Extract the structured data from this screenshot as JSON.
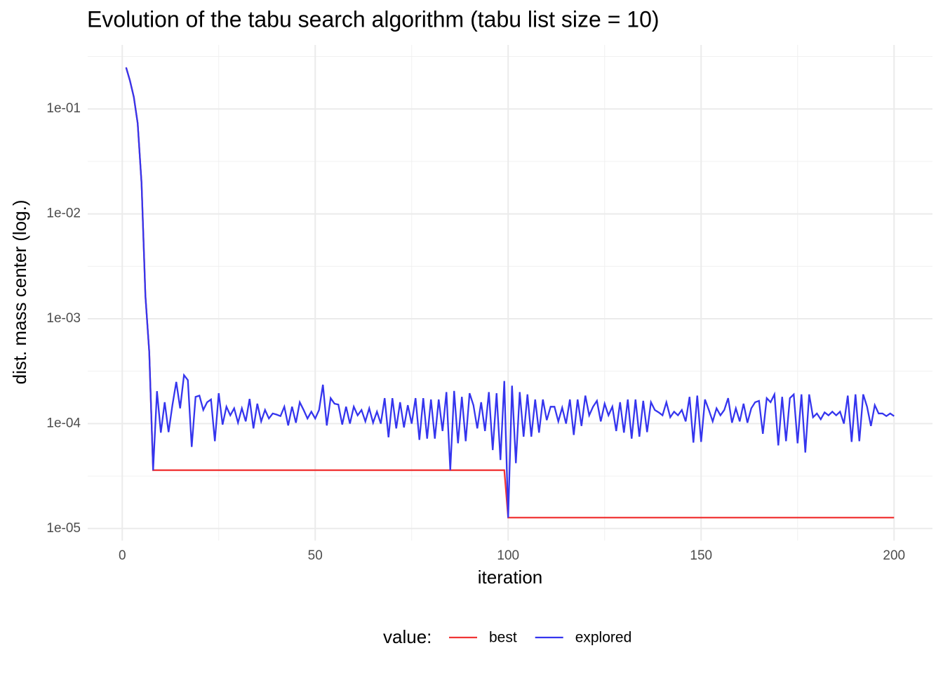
{
  "chart_data": {
    "type": "line",
    "title": "Evolution of the tabu search algorithm (tabu list size = 10)",
    "x_label": "iteration",
    "y_label": "dist. mass center (log.)",
    "legend_title": "value:",
    "legend_position": "bottom",
    "log_y": true,
    "grid": true,
    "xlim": [
      -8.95,
      209.95
    ],
    "xticks": [
      0,
      50,
      100,
      150,
      200
    ],
    "ylim": [
      7.67e-06,
      0.408
    ],
    "yticks": [
      {
        "value": 1e-05,
        "label": "1e-05"
      },
      {
        "value": 0.0001,
        "label": "1e-04"
      },
      {
        "value": 0.001,
        "label": "1e-03"
      },
      {
        "value": 0.01,
        "label": "1e-02"
      },
      {
        "value": 0.1,
        "label": "1e-01"
      }
    ],
    "x": [
      1,
      2,
      3,
      4,
      5,
      6,
      7,
      8,
      9,
      10,
      11,
      12,
      13,
      14,
      15,
      16,
      17,
      18,
      19,
      20,
      21,
      22,
      23,
      24,
      25,
      26,
      27,
      28,
      29,
      30,
      31,
      32,
      33,
      34,
      35,
      36,
      37,
      38,
      39,
      40,
      41,
      42,
      43,
      44,
      45,
      46,
      47,
      48,
      49,
      50,
      51,
      52,
      53,
      54,
      55,
      56,
      57,
      58,
      59,
      60,
      61,
      62,
      63,
      64,
      65,
      66,
      67,
      68,
      69,
      70,
      71,
      72,
      73,
      74,
      75,
      76,
      77,
      78,
      79,
      80,
      81,
      82,
      83,
      84,
      85,
      86,
      87,
      88,
      89,
      90,
      91,
      92,
      93,
      94,
      95,
      96,
      97,
      98,
      99,
      100,
      101,
      102,
      103,
      104,
      105,
      106,
      107,
      108,
      109,
      110,
      111,
      112,
      113,
      114,
      115,
      116,
      117,
      118,
      119,
      120,
      121,
      122,
      123,
      124,
      125,
      126,
      127,
      128,
      129,
      130,
      131,
      132,
      133,
      134,
      135,
      136,
      137,
      138,
      139,
      140,
      141,
      142,
      143,
      144,
      145,
      146,
      147,
      148,
      149,
      150,
      151,
      152,
      153,
      154,
      155,
      156,
      157,
      158,
      159,
      160,
      161,
      162,
      163,
      164,
      165,
      166,
      167,
      168,
      169,
      170,
      171,
      172,
      173,
      174,
      175,
      176,
      177,
      178,
      179,
      180,
      181,
      182,
      183,
      184,
      185,
      186,
      187,
      188,
      189,
      190,
      191,
      192,
      193,
      194,
      195,
      196,
      197,
      198,
      199,
      200
    ],
    "series": [
      {
        "name": "best",
        "color": "#f03535",
        "values": [
          0.249,
          0.186,
          0.13,
          0.073,
          0.0197,
          0.00166,
          0.00048,
          3.6e-05,
          3.6e-05,
          3.6e-05,
          3.6e-05,
          3.6e-05,
          3.6e-05,
          3.6e-05,
          3.6e-05,
          3.6e-05,
          3.6e-05,
          3.6e-05,
          3.6e-05,
          3.6e-05,
          3.6e-05,
          3.6e-05,
          3.6e-05,
          3.6e-05,
          3.6e-05,
          3.6e-05,
          3.6e-05,
          3.6e-05,
          3.6e-05,
          3.6e-05,
          3.6e-05,
          3.6e-05,
          3.6e-05,
          3.6e-05,
          3.6e-05,
          3.6e-05,
          3.6e-05,
          3.6e-05,
          3.6e-05,
          3.6e-05,
          3.6e-05,
          3.6e-05,
          3.6e-05,
          3.6e-05,
          3.6e-05,
          3.6e-05,
          3.6e-05,
          3.6e-05,
          3.6e-05,
          3.6e-05,
          3.6e-05,
          3.6e-05,
          3.6e-05,
          3.6e-05,
          3.6e-05,
          3.6e-05,
          3.6e-05,
          3.6e-05,
          3.6e-05,
          3.6e-05,
          3.6e-05,
          3.6e-05,
          3.6e-05,
          3.6e-05,
          3.6e-05,
          3.6e-05,
          3.6e-05,
          3.6e-05,
          3.6e-05,
          3.6e-05,
          3.6e-05,
          3.6e-05,
          3.6e-05,
          3.6e-05,
          3.6e-05,
          3.6e-05,
          3.6e-05,
          3.6e-05,
          3.6e-05,
          3.6e-05,
          3.6e-05,
          3.6e-05,
          3.6e-05,
          3.6e-05,
          3.6e-05,
          3.6e-05,
          3.6e-05,
          3.6e-05,
          3.6e-05,
          3.6e-05,
          3.6e-05,
          3.6e-05,
          3.6e-05,
          3.6e-05,
          3.6e-05,
          3.6e-05,
          3.6e-05,
          3.6e-05,
          3.6e-05,
          1.27e-05,
          1.27e-05,
          1.27e-05,
          1.27e-05,
          1.27e-05,
          1.27e-05,
          1.27e-05,
          1.27e-05,
          1.27e-05,
          1.27e-05,
          1.27e-05,
          1.27e-05,
          1.27e-05,
          1.27e-05,
          1.27e-05,
          1.27e-05,
          1.27e-05,
          1.27e-05,
          1.27e-05,
          1.27e-05,
          1.27e-05,
          1.27e-05,
          1.27e-05,
          1.27e-05,
          1.27e-05,
          1.27e-05,
          1.27e-05,
          1.27e-05,
          1.27e-05,
          1.27e-05,
          1.27e-05,
          1.27e-05,
          1.27e-05,
          1.27e-05,
          1.27e-05,
          1.27e-05,
          1.27e-05,
          1.27e-05,
          1.27e-05,
          1.27e-05,
          1.27e-05,
          1.27e-05,
          1.27e-05,
          1.27e-05,
          1.27e-05,
          1.27e-05,
          1.27e-05,
          1.27e-05,
          1.27e-05,
          1.27e-05,
          1.27e-05,
          1.27e-05,
          1.27e-05,
          1.27e-05,
          1.27e-05,
          1.27e-05,
          1.27e-05,
          1.27e-05,
          1.27e-05,
          1.27e-05,
          1.27e-05,
          1.27e-05,
          1.27e-05,
          1.27e-05,
          1.27e-05,
          1.27e-05,
          1.27e-05,
          1.27e-05,
          1.27e-05,
          1.27e-05,
          1.27e-05,
          1.27e-05,
          1.27e-05,
          1.27e-05,
          1.27e-05,
          1.27e-05,
          1.27e-05,
          1.27e-05,
          1.27e-05,
          1.27e-05,
          1.27e-05,
          1.27e-05,
          1.27e-05,
          1.27e-05,
          1.27e-05,
          1.27e-05,
          1.27e-05,
          1.27e-05,
          1.27e-05,
          1.27e-05,
          1.27e-05,
          1.27e-05,
          1.27e-05,
          1.27e-05,
          1.27e-05,
          1.27e-05,
          1.27e-05,
          1.27e-05,
          1.27e-05,
          1.27e-05,
          1.27e-05
        ]
      },
      {
        "name": "explored",
        "color": "#3535ee",
        "values": [
          0.249,
          0.186,
          0.13,
          0.073,
          0.0197,
          0.00166,
          0.00048,
          3.6e-05,
          0.000204,
          8.2e-05,
          0.00016,
          8.3e-05,
          0.00015,
          0.00025,
          0.00014,
          0.00029,
          0.00026,
          6e-05,
          0.00018,
          0.000185,
          0.000135,
          0.00016,
          0.00017,
          6.8e-05,
          0.000195,
          9.8e-05,
          0.000145,
          0.00012,
          0.00014,
          0.000102,
          0.00014,
          0.000105,
          0.000172,
          9e-05,
          0.000155,
          0.000105,
          0.000135,
          0.000112,
          0.000125,
          0.000122,
          0.000118,
          0.000145,
          9.6e-05,
          0.000145,
          0.000102,
          0.00016,
          0.000135,
          0.000112,
          0.00013,
          0.000112,
          0.000135,
          0.000235,
          9.6e-05,
          0.000175,
          0.000155,
          0.000152,
          9.8e-05,
          0.000145,
          0.0001,
          0.000145,
          0.00012,
          0.000135,
          0.000105,
          0.00014,
          0.000102,
          0.00013,
          0.0001,
          0.000175,
          7.4e-05,
          0.000175,
          9e-05,
          0.00016,
          9.2e-05,
          0.00015,
          0.0001,
          0.000175,
          7e-05,
          0.000175,
          7.2e-05,
          0.00017,
          7.2e-05,
          0.00017,
          8.5e-05,
          0.0002,
          3.6e-05,
          0.000205,
          6.5e-05,
          0.00018,
          6.8e-05,
          0.000195,
          0.00015,
          9e-05,
          0.00016,
          8.5e-05,
          0.0002,
          5.6e-05,
          0.000195,
          4.5e-05,
          0.000255,
          1.27e-05,
          0.00023,
          4.2e-05,
          0.0002,
          7.5e-05,
          0.00019,
          7.5e-05,
          0.00017,
          8.2e-05,
          0.00017,
          0.000108,
          0.000145,
          0.000145,
          0.000105,
          0.000142,
          0.0001,
          0.00017,
          7.8e-05,
          0.00017,
          9.5e-05,
          0.000185,
          0.00012,
          0.000145,
          0.000165,
          0.000105,
          0.000155,
          0.00012,
          0.000145,
          8.5e-05,
          0.00016,
          8.2e-05,
          0.00017,
          7.2e-05,
          0.00017,
          7.5e-05,
          0.000165,
          8.3e-05,
          0.00016,
          0.000135,
          0.000128,
          0.00012,
          0.00016,
          0.000115,
          0.00013,
          0.00012,
          0.000135,
          0.000105,
          0.00018,
          6.6e-05,
          0.000185,
          6.7e-05,
          0.00017,
          0.000135,
          0.000105,
          0.00014,
          0.00012,
          0.000135,
          0.000175,
          0.000102,
          0.00014,
          0.000105,
          0.000155,
          0.000102,
          0.00014,
          0.00016,
          0.000165,
          8e-05,
          0.000175,
          0.00016,
          0.00019,
          6.2e-05,
          0.00018,
          6.8e-05,
          0.000175,
          0.00019,
          6.5e-05,
          0.00019,
          5.3e-05,
          0.00019,
          0.000115,
          0.000125,
          0.00011,
          0.000128,
          0.00012,
          0.00013,
          0.00012,
          0.00013,
          0.0001,
          0.000185,
          6.7e-05,
          0.00019,
          6.8e-05,
          0.00019,
          0.000145,
          9.5e-05,
          0.00015,
          0.000125,
          0.000125,
          0.000118,
          0.000125,
          0.000118
        ]
      }
    ]
  }
}
